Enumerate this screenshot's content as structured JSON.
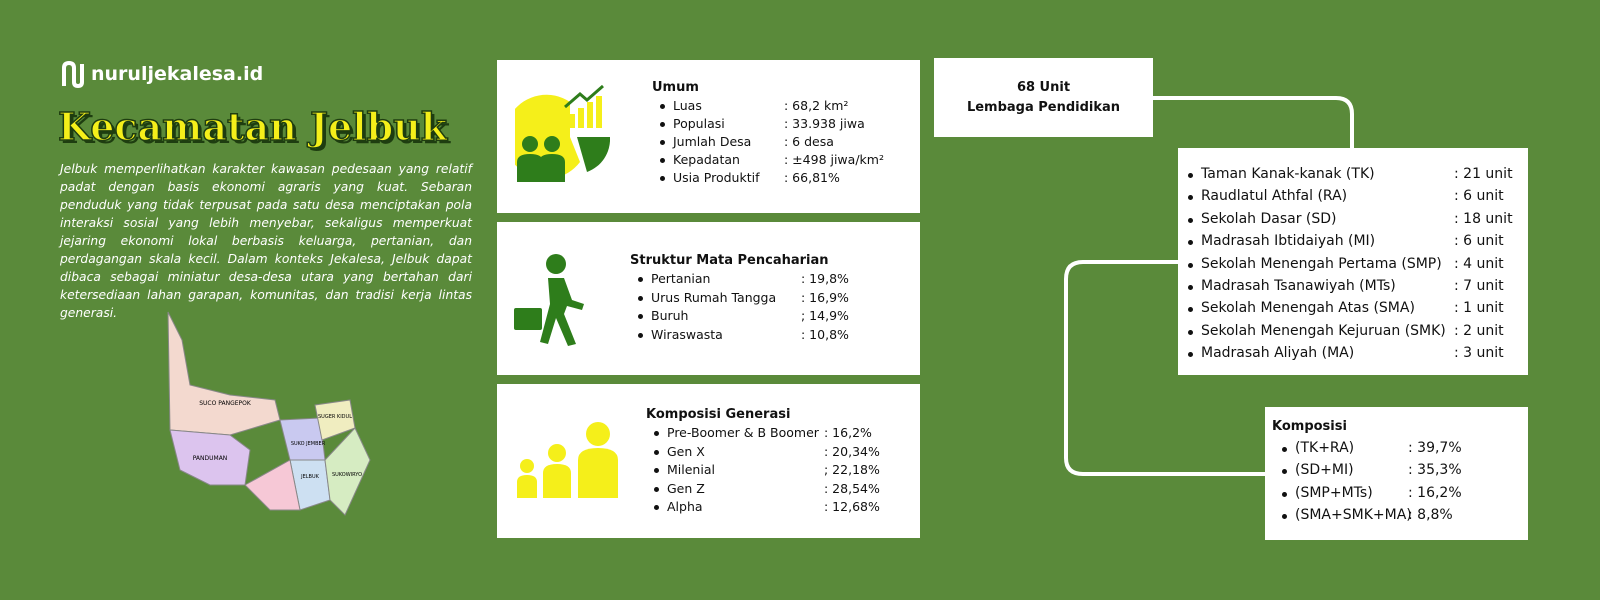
{
  "brand": "nuruljekalesa.id",
  "title": "Kecamatan Jelbuk",
  "description": "Jelbuk memperlihatkan karakter kawasan pedesaan yang relatif padat dengan basis ekonomi agraris yang kuat. Sebaran penduduk yang tidak terpusat pada satu desa menciptakan pola interaksi sosial yang lebih menyebar, sekaligus memperkuat jejaring ekonomi lokal berbasis keluarga, pertanian, dan perdagangan skala kecil. Dalam konteks Jekalesa, Jelbuk dapat dibaca sebagai miniatur desa-desa utara yang bertahan dari ketersediaan lahan garapan, komunitas, dan tradisi kerja lintas generasi.",
  "map_labels": [
    "SUCO PANGEPOK",
    "SUGER KIDUL",
    "SUKO JEMBER",
    "PANDUMAN",
    "JELBUK",
    "SUKOWIRYO"
  ],
  "umum": {
    "title": "Umum",
    "items": [
      {
        "label": "Luas",
        "value": ": 68,2 km²"
      },
      {
        "label": "Populasi",
        "value": ": 33.938 jiwa"
      },
      {
        "label": "Jumlah Desa",
        "value": ": 6 desa"
      },
      {
        "label": "Kepadatan",
        "value": ": ±498 jiwa/km²"
      },
      {
        "label": "Usia Produktif",
        "value": ": 66,81%"
      }
    ]
  },
  "pekerjaan": {
    "title": "Struktur Mata Pencaharian",
    "items": [
      {
        "label": "Pertanian",
        "value": ": 19,8%"
      },
      {
        "label": "Urus Rumah Tangga",
        "value": ": 16,9%"
      },
      {
        "label": "Buruh",
        "value": "; 14,9%"
      },
      {
        "label": "Wiraswasta",
        "value": ": 10,8%"
      }
    ]
  },
  "generasi": {
    "title": "Komposisi Generasi",
    "items": [
      {
        "label": "Pre-Boomer & B Boomer",
        "value": ": 16,2%"
      },
      {
        "label": "Gen X",
        "value": ": 20,34%"
      },
      {
        "label": "Milenial",
        "value": "; 22,18%"
      },
      {
        "label": "Gen Z",
        "value": ": 28,54%"
      },
      {
        "label": "Alpha",
        "value": ": 12,68%"
      }
    ]
  },
  "pendidikan": {
    "title_lines": [
      "68 Unit",
      "Lembaga Pendidikan"
    ],
    "items": [
      {
        "label": "Taman Kanak-kanak (TK)",
        "value": ": 21 unit"
      },
      {
        "label": "Raudlatul Athfal (RA)",
        "value": ": 6 unit"
      },
      {
        "label": "Sekolah Dasar (SD)",
        "value": ": 18 unit"
      },
      {
        "label": "Madrasah Ibtidaiyah (MI)",
        "value": ": 6 unit"
      },
      {
        "label": "Sekolah Menengah Pertama (SMP)",
        "value": ": 4 unit"
      },
      {
        "label": "Madrasah Tsanawiyah (MTs)",
        "value": ": 7 unit"
      },
      {
        "label": "Sekolah Menengah Atas (SMA)",
        "value": ": 1 unit"
      },
      {
        "label": "Sekolah Menengah Kejuruan (SMK)",
        "value": ": 2 unit"
      },
      {
        "label": "Madrasah Aliyah (MA)",
        "value": ": 3 unit"
      }
    ]
  },
  "komposisi": {
    "title": "Komposisi",
    "items": [
      {
        "label": "(TK+RA)",
        "value": ": 39,7%"
      },
      {
        "label": "(SD+MI)",
        "value": ": 35,3%"
      },
      {
        "label": "(SMP+MTs)",
        "value": ": 16,2%"
      },
      {
        "label": "(SMA+SMK+MA)",
        "value": ":  8,8%"
      }
    ]
  }
}
